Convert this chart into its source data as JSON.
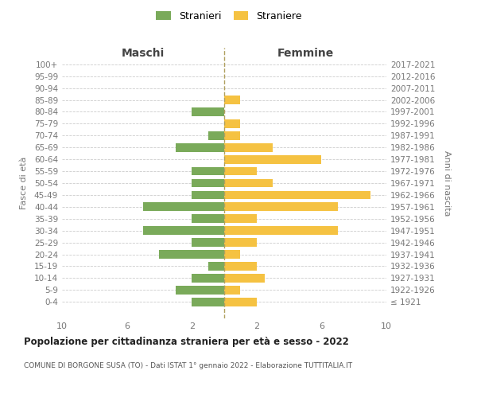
{
  "age_groups": [
    "100+",
    "95-99",
    "90-94",
    "85-89",
    "80-84",
    "75-79",
    "70-74",
    "65-69",
    "60-64",
    "55-59",
    "50-54",
    "45-49",
    "40-44",
    "35-39",
    "30-34",
    "25-29",
    "20-24",
    "15-19",
    "10-14",
    "5-9",
    "0-4"
  ],
  "birth_years": [
    "≤ 1921",
    "1922-1926",
    "1927-1931",
    "1932-1936",
    "1937-1941",
    "1942-1946",
    "1947-1951",
    "1952-1956",
    "1957-1961",
    "1962-1966",
    "1967-1971",
    "1972-1976",
    "1977-1981",
    "1982-1986",
    "1987-1991",
    "1992-1996",
    "1997-2001",
    "2002-2006",
    "2007-2011",
    "2012-2016",
    "2017-2021"
  ],
  "maschi": [
    0,
    0,
    0,
    0,
    2,
    0,
    1,
    3,
    0,
    2,
    2,
    2,
    5,
    2,
    5,
    2,
    4,
    1,
    2,
    3,
    2
  ],
  "femmine": [
    0,
    0,
    0,
    1,
    0,
    1,
    1,
    3,
    6,
    2,
    3,
    9,
    7,
    2,
    7,
    2,
    1,
    2,
    2.5,
    1,
    2
  ],
  "color_maschi": "#7aaa5a",
  "color_femmine": "#f5c242",
  "title": "Popolazione per cittadinanza straniera per età e sesso - 2022",
  "subtitle": "COMUNE DI BORGONE SUSA (TO) - Dati ISTAT 1° gennaio 2022 - Elaborazione TUTTITALIA.IT",
  "ylabel_left": "Fasce di età",
  "ylabel_right": "Anni di nascita",
  "xlabel_left": "Maschi",
  "xlabel_right": "Femmine",
  "legend_stranieri": "Stranieri",
  "legend_straniere": "Straniere",
  "xlim": 10,
  "background_color": "#ffffff",
  "grid_color": "#cccccc"
}
